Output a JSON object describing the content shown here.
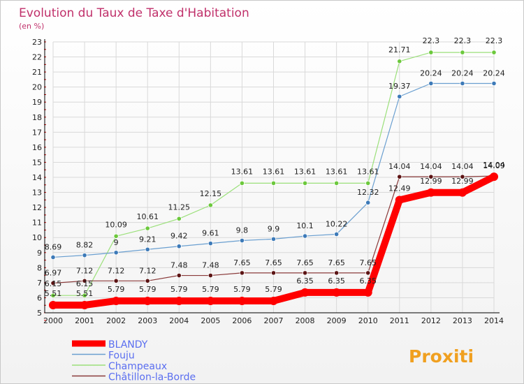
{
  "chart_data": {
    "type": "line",
    "title": "Evolution du Taux de Taxe d'Habitation",
    "subtitle": "(en %)",
    "xlabel": "",
    "ylabel": "",
    "ylim": [
      5,
      23
    ],
    "yticks": [
      5,
      6,
      7,
      8,
      9,
      10,
      11,
      12,
      13,
      14,
      15,
      16,
      17,
      18,
      19,
      20,
      21,
      22,
      23
    ],
    "x": [
      2000,
      2001,
      2002,
      2003,
      2004,
      2005,
      2006,
      2007,
      2008,
      2009,
      2010,
      2011,
      2012,
      2013,
      2014
    ],
    "grid": true,
    "legend_position": "bottom-left",
    "series": [
      {
        "name": "BLANDY",
        "color": "#ff0000",
        "marker": "#ff0000",
        "width": 10,
        "values": [
          5.51,
          5.51,
          5.79,
          5.79,
          5.79,
          5.79,
          5.79,
          5.79,
          6.35,
          6.35,
          6.35,
          12.49,
          12.99,
          12.99,
          14.04
        ],
        "labels": [
          "5.51",
          "5.51",
          "5.79",
          "5.79",
          "5.79",
          "5.79",
          "5.79",
          "5.79",
          "6.35",
          "6.35",
          "6.35",
          "12.49",
          "12.99",
          "12.99",
          "14.04"
        ]
      },
      {
        "name": "Fouju",
        "color": "#6a9fd0",
        "marker": "#3d7ab8",
        "width": 1.2,
        "values": [
          8.69,
          8.82,
          9,
          9.21,
          9.42,
          9.61,
          9.8,
          9.9,
          10.1,
          10.22,
          12.32,
          19.37,
          20.24,
          20.24,
          20.24
        ],
        "labels": [
          "8.69",
          "8.82",
          "9",
          "9.21",
          "9.42",
          "9.61",
          "9.8",
          "9.9",
          "10.1",
          "10.22",
          "12.32",
          "19.37",
          "20.24",
          "20.24",
          "20.24"
        ]
      },
      {
        "name": "Champeaux",
        "color": "#9be07a",
        "marker": "#6cc83c",
        "width": 1.2,
        "values": [
          6.15,
          6.15,
          10.09,
          10.61,
          11.25,
          12.15,
          13.61,
          13.61,
          13.61,
          13.61,
          13.61,
          21.71,
          22.3,
          22.3,
          22.3
        ],
        "labels": [
          "6.15",
          "6.15",
          "10.09",
          "10.61",
          "11.25",
          "12.15",
          "13.61",
          "13.61",
          "13.61",
          "13.61",
          "13.61",
          "21.71",
          "22.3",
          "22.3",
          "22.3"
        ]
      },
      {
        "name": "Châtillon-la-Borde",
        "color": "#8a3a3a",
        "marker": "#5c1414",
        "width": 1.2,
        "values": [
          6.97,
          7.12,
          7.12,
          7.12,
          7.48,
          7.48,
          7.65,
          7.65,
          7.65,
          7.65,
          7.65,
          14.04,
          14.04,
          14.04,
          14.09
        ],
        "labels": [
          "6.97",
          "7.12",
          "7.12",
          "7.12",
          "7.48",
          "7.48",
          "7.65",
          "7.65",
          "7.65",
          "7.65",
          "7.65",
          "14.04",
          "14.04",
          "14.04",
          "14.09"
        ]
      }
    ]
  },
  "logo": {
    "text": "Proxiti"
  },
  "colors": {
    "title": "#c0306a",
    "axis": "#000000",
    "grid": "#d9d9d9",
    "ytick_mark": "#d00000",
    "label": "#222222",
    "legend_text": "#5a6ef0"
  }
}
